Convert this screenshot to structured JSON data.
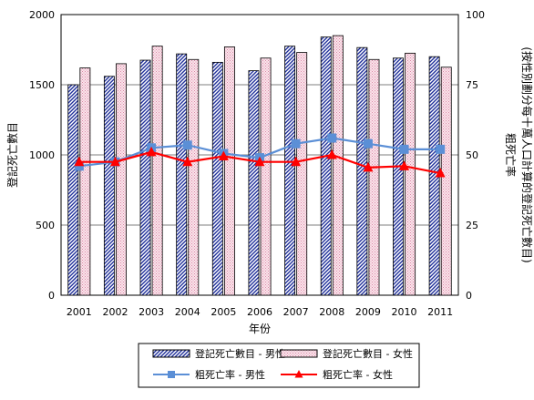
{
  "chart_data": {
    "type": "bar",
    "categories": [
      "2001",
      "2002",
      "2003",
      "2004",
      "2005",
      "2006",
      "2007",
      "2008",
      "2009",
      "2010",
      "2011"
    ],
    "xlabel": "年份",
    "ylabel_left": "登記死亡數目",
    "ylabel_right": "粗死亡率\n(按性別劃分每十萬人口計算的登記死亡數目)",
    "ylim_left": [
      0,
      2000
    ],
    "yticks_left": [
      0,
      500,
      1000,
      1500,
      2000
    ],
    "ylim_right": [
      0,
      100
    ],
    "yticks_right": [
      0,
      25,
      50,
      75,
      100
    ],
    "series": [
      {
        "name": "登記死亡數目 - 男性",
        "kind": "bar",
        "axis": "left",
        "color": "#1f2f9a",
        "values": [
          1500,
          1560,
          1675,
          1720,
          1660,
          1600,
          1775,
          1840,
          1765,
          1690,
          1700
        ]
      },
      {
        "name": "登記死亡數目 - 女性",
        "kind": "bar",
        "axis": "left",
        "color": "#f3c6d6",
        "values": [
          1620,
          1650,
          1775,
          1680,
          1770,
          1690,
          1730,
          1850,
          1680,
          1725,
          1625
        ]
      },
      {
        "name": "粗死亡率 - 男性",
        "kind": "line",
        "axis": "right",
        "color": "#5b8fd6",
        "marker": "square",
        "values": [
          46,
          47.5,
          52.5,
          53.5,
          50.5,
          49,
          54,
          56,
          54,
          52,
          52
        ]
      },
      {
        "name": "粗死亡率 - 女性",
        "kind": "line",
        "axis": "right",
        "color": "#ff0000",
        "marker": "triangle",
        "values": [
          47.5,
          47.5,
          51,
          47.5,
          49.5,
          47.5,
          47.5,
          50,
          45.5,
          46,
          43.5
        ]
      }
    ],
    "legend_position": "bottom"
  }
}
